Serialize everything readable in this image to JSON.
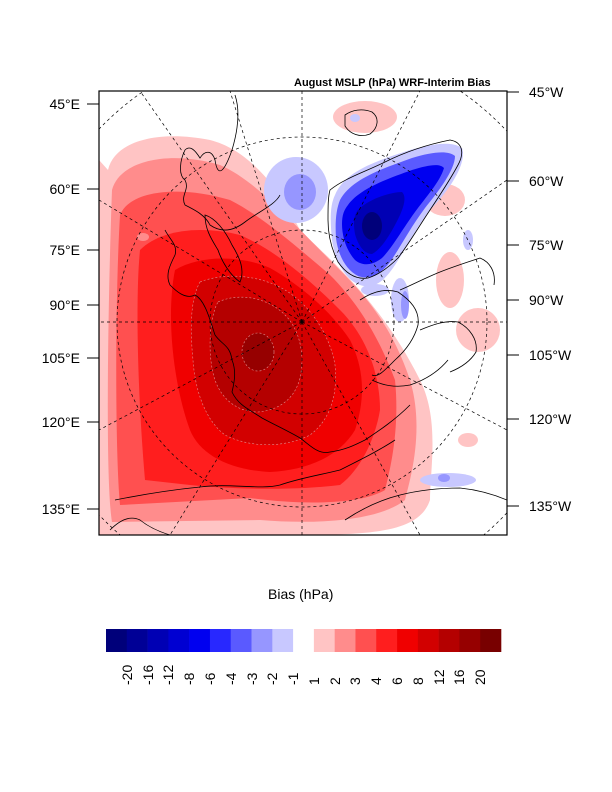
{
  "title": "August MSLP (hPa) WRF-Interim Bias",
  "left_axis_labels": [
    "45°E",
    "60°E",
    "75°E",
    "90°E",
    "105°E",
    "120°E",
    "135°E"
  ],
  "right_axis_labels": [
    "45°W",
    "60°W",
    "75°W",
    "90°W",
    "105°W",
    "120°W",
    "135°W"
  ],
  "colorbar": {
    "title": "Bias (hPa)",
    "levels": [
      "-20",
      "-16",
      "-12",
      "-8",
      "-6",
      "-4",
      "-3",
      "-2",
      "-1",
      "1",
      "2",
      "3",
      "4",
      "6",
      "8",
      "12",
      "16",
      "20"
    ],
    "colors": [
      "#00007a",
      "#000096",
      "#0000b4",
      "#0000d2",
      "#0000f0",
      "#2828ff",
      "#5a5aff",
      "#9696ff",
      "#c8c8ff",
      "#ffffff",
      "#ffc4c4",
      "#ff8c8c",
      "#ff5050",
      "#ff1e1e",
      "#f00000",
      "#d20000",
      "#b40000",
      "#960000",
      "#780000"
    ]
  },
  "chart_data": {
    "type": "heatmap",
    "title": "August MSLP (hPa) WRF-Interim Bias",
    "variable": "Mean sea level pressure bias",
    "units": "hPa",
    "projection": "polar stereographic (Arctic)",
    "colorbar_title": "Bias (hPa)",
    "contour_levels": [
      -20,
      -16,
      -12,
      -8,
      -6,
      -4,
      -3,
      -2,
      -1,
      1,
      2,
      3,
      4,
      6,
      8,
      12,
      16,
      20
    ],
    "left_axis_ticks": [
      "45°E",
      "60°E",
      "75°E",
      "90°E",
      "105°E",
      "120°E",
      "135°E"
    ],
    "right_axis_ticks": [
      "45°W",
      "60°W",
      "75°W",
      "90°W",
      "105°W",
      "120°W",
      "135°W"
    ],
    "features": [
      {
        "name": "Siberia/Arctic Ocean positive max",
        "approx_max_bias": ">20",
        "location": "central-left, near 105°E"
      },
      {
        "name": "Greenland negative min",
        "approx_min_bias": "<-16",
        "location": "upper-right"
      },
      {
        "name": "Weak negative over Barents/Kara",
        "approx_bias": "-2 to -3",
        "location": "upper-center"
      }
    ]
  }
}
